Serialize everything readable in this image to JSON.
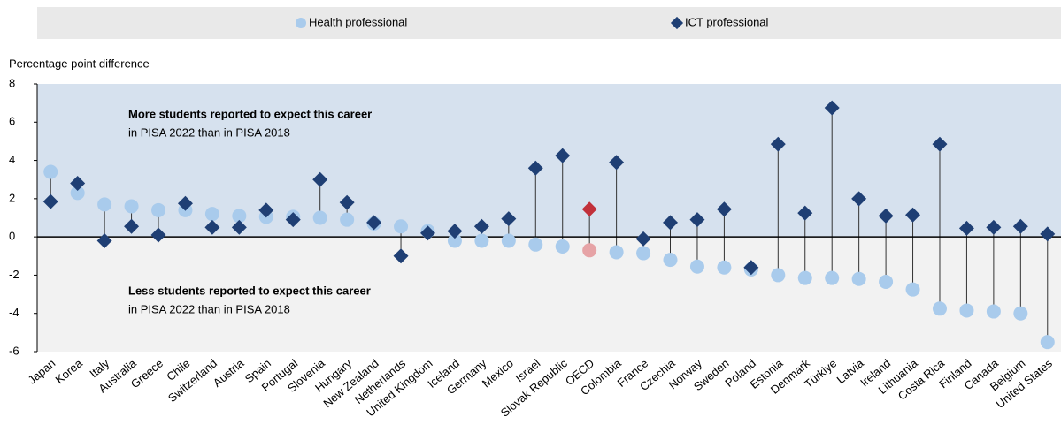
{
  "chart_data": {
    "type": "dot",
    "y_label": "Percentage point difference",
    "annotations": [
      {
        "title": "More students reported to expect this career",
        "text": "in PISA 2022 than in PISA 2018"
      },
      {
        "title": "Less students reported to expect this career",
        "text": "in PISA 2022 than in PISA 2018"
      }
    ],
    "categories": [
      "Japan",
      "Korea",
      "Italy",
      "Australia",
      "Greece",
      "Chile",
      "Switzerland",
      "Austria",
      "Spain",
      "Portugal",
      "Slovenia",
      "Hungary",
      "New Zealand",
      "Netherlands",
      "United Kingdom",
      "Iceland",
      "Germany",
      "Mexico",
      "Israel",
      "Slovak Republic",
      "OECD",
      "Colombia",
      "France",
      "Czechia",
      "Norway",
      "Sweden",
      "Poland",
      "Estonia",
      "Denmark",
      "Türkiye",
      "Latvia",
      "Ireland",
      "Lithuania",
      "Costa Rica",
      "Finland",
      "Canada",
      "Belgium",
      "United States"
    ],
    "highlight": "OECD",
    "series": [
      {
        "name": "Health professional",
        "color": "#a9cbec",
        "highlight_color": "#e6a3a6",
        "marker": "circle",
        "values": [
          3.4,
          2.3,
          1.7,
          1.6,
          1.4,
          1.4,
          1.2,
          1.1,
          1.05,
          1.05,
          1.0,
          0.9,
          0.7,
          0.55,
          0.3,
          -0.2,
          -0.2,
          -0.2,
          -0.4,
          -0.5,
          -0.7,
          -0.8,
          -0.85,
          -1.2,
          -1.55,
          -1.6,
          -1.7,
          -2.0,
          -2.15,
          -2.15,
          -2.2,
          -2.35,
          -2.75,
          -3.75,
          -3.85,
          -3.9,
          -4.0,
          -5.5
        ]
      },
      {
        "name": "ICT professional",
        "color": "#1f3f74",
        "highlight_color": "#c1303a",
        "marker": "diamond",
        "values": [
          1.85,
          2.8,
          -0.2,
          0.55,
          0.1,
          1.75,
          0.5,
          0.5,
          1.4,
          0.9,
          3.0,
          1.8,
          0.75,
          -1.0,
          0.2,
          0.3,
          0.55,
          0.95,
          3.6,
          4.25,
          1.45,
          3.9,
          -0.1,
          0.75,
          0.9,
          1.45,
          -1.6,
          4.85,
          1.25,
          6.75,
          2.0,
          1.1,
          1.15,
          4.85,
          0.45,
          0.5,
          0.55,
          0.15
        ]
      }
    ],
    "ylim": [
      -6,
      8
    ],
    "yticks": [
      -6,
      -4,
      -2,
      0,
      2,
      4,
      6,
      8
    ]
  }
}
